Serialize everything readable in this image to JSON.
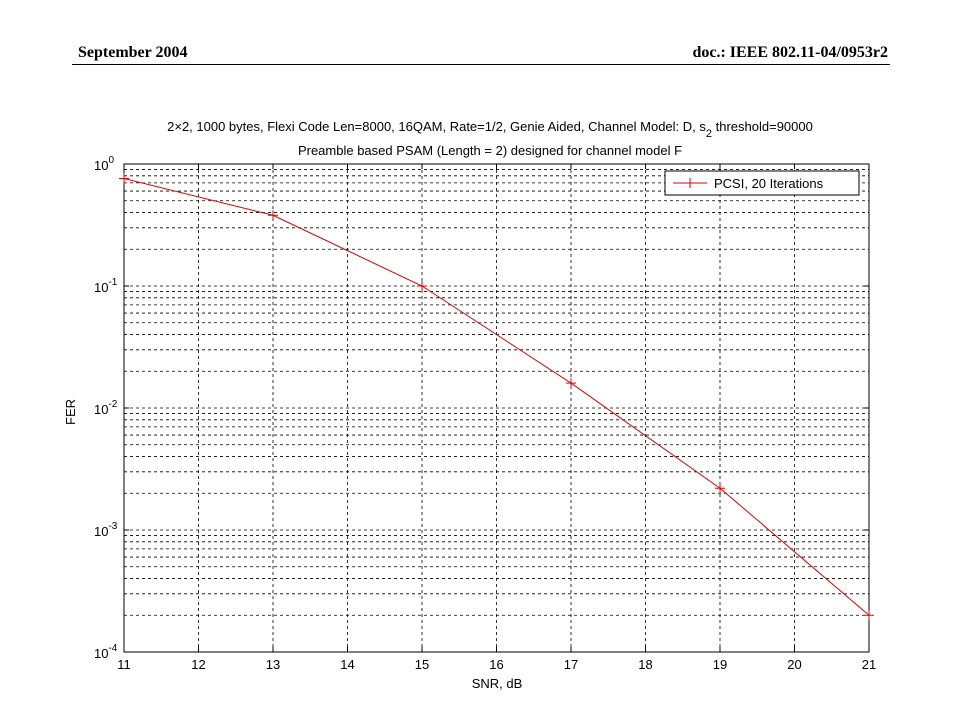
{
  "header": {
    "date": "September 2004",
    "doc": "doc.: IEEE 802.11-04/0953r2"
  },
  "chart_data": {
    "type": "line",
    "title_line1": "2×2, 1000 bytes, Flexi Code Len=8000, 16QAM, Rate=1/2, Genie Aided, Channel Model: D, s",
    "title_line1_sub": "2",
    "title_line1_tail": " threshold=90000",
    "title_line2": "Preamble based PSAM (Length = 2) designed for channel model F",
    "xlabel": "SNR, dB",
    "ylabel": "FER",
    "xlim": [
      11,
      21
    ],
    "ylim": [
      0.0001,
      1
    ],
    "yscale": "log",
    "grid": true,
    "legend_position": "top-right",
    "x_ticks": [
      11,
      12,
      13,
      14,
      15,
      16,
      17,
      18,
      19,
      20,
      21
    ],
    "y_ticks": [
      {
        "base": "10",
        "exp": "0",
        "value": 1
      },
      {
        "base": "10",
        "exp": "-1",
        "value": 0.1
      },
      {
        "base": "10",
        "exp": "-2",
        "value": 0.01
      },
      {
        "base": "10",
        "exp": "-3",
        "value": 0.001
      },
      {
        "base": "10",
        "exp": "-4",
        "value": 0.0001
      }
    ],
    "series": [
      {
        "name": "PCSI, 20 Iterations",
        "color": "#e00000",
        "marker": "+",
        "x": [
          11,
          13,
          15,
          17,
          19,
          21
        ],
        "y": [
          0.76,
          0.38,
          0.1,
          0.016,
          0.0022,
          0.0002
        ]
      }
    ]
  }
}
